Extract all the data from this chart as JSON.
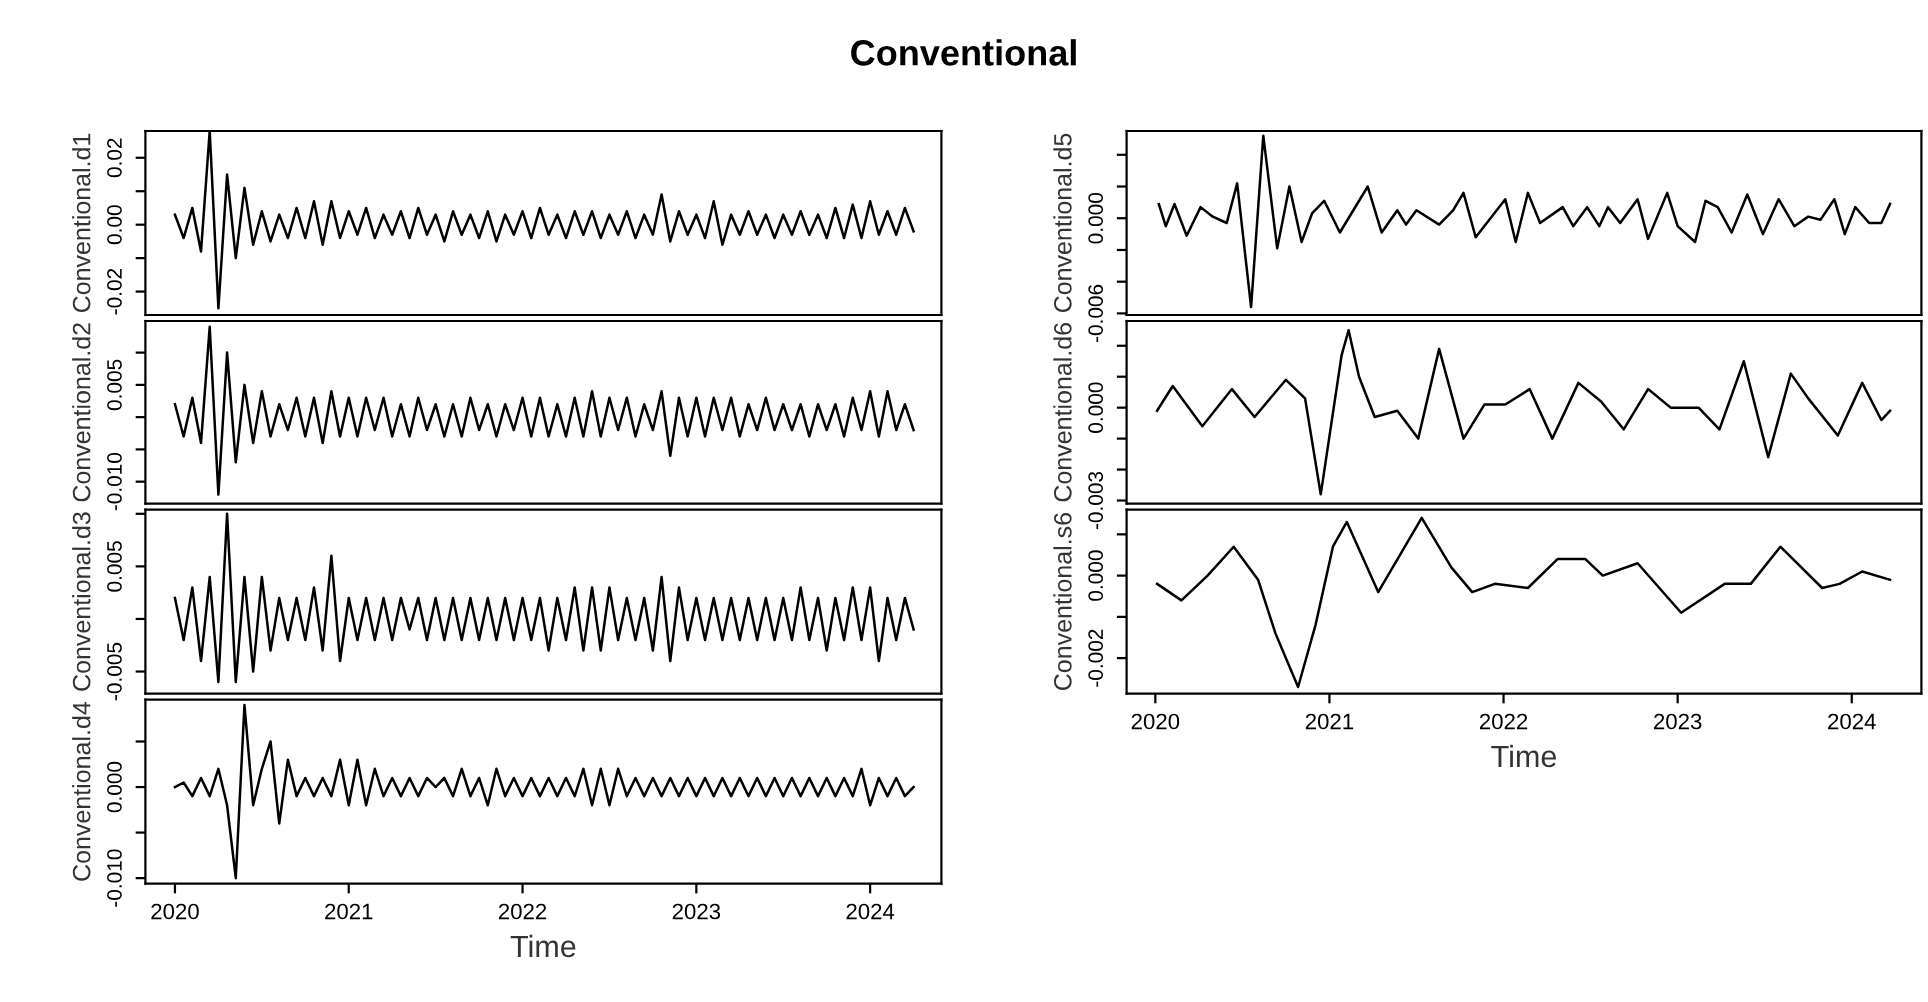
{
  "chart_data": [
    {
      "type": "line",
      "title": "Conventional",
      "ylabel": "Conventional.d1",
      "tick_labels": "y",
      "xlim": [
        2019.83,
        2024.41
      ],
      "ylim": [
        -0.027,
        0.028
      ],
      "yticks": [
        {
          "value": -0.02,
          "label": "-0.02"
        },
        {
          "value": -0.01,
          "label": null
        },
        {
          "value": 0,
          "label": "0.00"
        },
        {
          "value": 0.01,
          "label": null
        },
        {
          "value": 0.02,
          "label": "0.02"
        }
      ],
      "grid": false,
      "legend": false,
      "series": [
        {
          "color": "#000000",
          "x": [
            2020.0,
            2020.05,
            2020.1,
            2020.15,
            2020.2,
            2020.25,
            2020.3,
            2020.35,
            2020.4,
            2020.45,
            2020.5,
            2020.55,
            2020.6,
            2020.65,
            2020.7,
            2020.75,
            2020.8,
            2020.85,
            2020.9,
            2020.95,
            2021.0,
            2021.05,
            2021.1,
            2021.15,
            2021.2,
            2021.25,
            2021.3,
            2021.35,
            2021.4,
            2021.45,
            2021.5,
            2021.55,
            2021.6,
            2021.65,
            2021.7,
            2021.75,
            2021.8,
            2021.85,
            2021.9,
            2021.95,
            2022.0,
            2022.05,
            2022.1,
            2022.15,
            2022.2,
            2022.25,
            2022.3,
            2022.35,
            2022.4,
            2022.45,
            2022.5,
            2022.55,
            2022.6,
            2022.65,
            2022.7,
            2022.75,
            2022.8,
            2022.85,
            2022.9,
            2022.95,
            2023.0,
            2023.05,
            2023.1,
            2023.15,
            2023.2,
            2023.25,
            2023.3,
            2023.35,
            2023.4,
            2023.45,
            2023.5,
            2023.55,
            2023.6,
            2023.65,
            2023.7,
            2023.75,
            2023.8,
            2023.85,
            2023.9,
            2023.95,
            2024.0,
            2024.05,
            2024.1,
            2024.15,
            2024.2,
            2024.25
          ],
          "values": [
            0.003,
            -0.004,
            0.005,
            -0.008,
            0.028,
            -0.025,
            0.015,
            -0.01,
            0.011,
            -0.006,
            0.004,
            -0.005,
            0.003,
            -0.004,
            0.005,
            -0.004,
            0.007,
            -0.006,
            0.007,
            -0.004,
            0.004,
            -0.003,
            0.005,
            -0.004,
            0.003,
            -0.003,
            0.004,
            -0.004,
            0.005,
            -0.003,
            0.003,
            -0.005,
            0.004,
            -0.003,
            0.003,
            -0.004,
            0.004,
            -0.005,
            0.003,
            -0.003,
            0.004,
            -0.004,
            0.005,
            -0.003,
            0.003,
            -0.004,
            0.004,
            -0.003,
            0.004,
            -0.004,
            0.003,
            -0.003,
            0.004,
            -0.004,
            0.003,
            -0.003,
            0.009,
            -0.005,
            0.004,
            -0.003,
            0.003,
            -0.004,
            0.007,
            -0.006,
            0.003,
            -0.003,
            0.004,
            -0.003,
            0.003,
            -0.004,
            0.003,
            -0.003,
            0.004,
            -0.003,
            0.003,
            -0.004,
            0.005,
            -0.004,
            0.006,
            -0.004,
            0.007,
            -0.003,
            0.004,
            -0.003,
            0.005,
            -0.002
          ]
        }
      ]
    },
    {
      "type": "line",
      "ylabel": "Conventional.d2",
      "tick_labels": "y",
      "xlim": [
        2019.83,
        2024.41
      ],
      "ylim": [
        -0.0134,
        0.0149
      ],
      "yticks": [
        {
          "value": -0.01,
          "label": "-0.010"
        },
        {
          "value": -0.005,
          "label": null
        },
        {
          "value": 0,
          "label": null
        },
        {
          "value": 0.005,
          "label": "0.005"
        },
        {
          "value": 0.01,
          "label": null
        }
      ],
      "grid": false,
      "legend": false,
      "series": [
        {
          "color": "#000000",
          "x": [
            2020.0,
            2020.05,
            2020.1,
            2020.15,
            2020.2,
            2020.25,
            2020.3,
            2020.35,
            2020.4,
            2020.45,
            2020.5,
            2020.55,
            2020.6,
            2020.65,
            2020.7,
            2020.75,
            2020.8,
            2020.85,
            2020.9,
            2020.95,
            2021.0,
            2021.05,
            2021.1,
            2021.15,
            2021.2,
            2021.25,
            2021.3,
            2021.35,
            2021.4,
            2021.45,
            2021.5,
            2021.55,
            2021.6,
            2021.65,
            2021.7,
            2021.75,
            2021.8,
            2021.85,
            2021.9,
            2021.95,
            2022.0,
            2022.05,
            2022.1,
            2022.15,
            2022.2,
            2022.25,
            2022.3,
            2022.35,
            2022.4,
            2022.45,
            2022.5,
            2022.55,
            2022.6,
            2022.65,
            2022.7,
            2022.75,
            2022.8,
            2022.85,
            2022.9,
            2022.95,
            2023.0,
            2023.05,
            2023.1,
            2023.15,
            2023.2,
            2023.25,
            2023.3,
            2023.35,
            2023.4,
            2023.45,
            2023.5,
            2023.55,
            2023.6,
            2023.65,
            2023.7,
            2023.75,
            2023.8,
            2023.85,
            2023.9,
            2023.95,
            2024.0,
            2024.05,
            2024.1,
            2024.15,
            2024.2,
            2024.25
          ],
          "values": [
            0.002,
            -0.003,
            0.003,
            -0.004,
            0.014,
            -0.012,
            0.01,
            -0.007,
            0.005,
            -0.004,
            0.004,
            -0.003,
            0.002,
            -0.002,
            0.003,
            -0.003,
            0.003,
            -0.004,
            0.004,
            -0.003,
            0.003,
            -0.003,
            0.003,
            -0.002,
            0.003,
            -0.003,
            0.002,
            -0.003,
            0.003,
            -0.002,
            0.002,
            -0.003,
            0.002,
            -0.003,
            0.003,
            -0.002,
            0.002,
            -0.003,
            0.002,
            -0.002,
            0.003,
            -0.003,
            0.003,
            -0.003,
            0.002,
            -0.003,
            0.003,
            -0.003,
            0.004,
            -0.003,
            0.003,
            -0.002,
            0.003,
            -0.003,
            0.002,
            -0.002,
            0.004,
            -0.006,
            0.003,
            -0.003,
            0.003,
            -0.003,
            0.003,
            -0.002,
            0.003,
            -0.003,
            0.002,
            -0.002,
            0.003,
            -0.002,
            0.002,
            -0.002,
            0.002,
            -0.003,
            0.002,
            -0.002,
            0.002,
            -0.003,
            0.003,
            -0.002,
            0.004,
            -0.003,
            0.004,
            -0.002,
            0.002,
            -0.002
          ]
        }
      ]
    },
    {
      "type": "line",
      "ylabel": "Conventional.d3",
      "tick_labels": "y",
      "xlim": [
        2019.83,
        2024.41
      ],
      "ylim": [
        -0.0071,
        0.0104
      ],
      "yticks": [
        {
          "value": -0.005,
          "label": "-0.005"
        },
        {
          "value": 0,
          "label": null
        },
        {
          "value": 0.005,
          "label": "0.005"
        },
        {
          "value": 0.01,
          "label": null
        }
      ],
      "grid": false,
      "legend": false,
      "series": [
        {
          "color": "#000000",
          "x": [
            2020.0,
            2020.05,
            2020.1,
            2020.15,
            2020.2,
            2020.25,
            2020.3,
            2020.35,
            2020.4,
            2020.45,
            2020.5,
            2020.55,
            2020.6,
            2020.65,
            2020.7,
            2020.75,
            2020.8,
            2020.85,
            2020.9,
            2020.95,
            2021.0,
            2021.05,
            2021.1,
            2021.15,
            2021.2,
            2021.25,
            2021.3,
            2021.35,
            2021.4,
            2021.45,
            2021.5,
            2021.55,
            2021.6,
            2021.65,
            2021.7,
            2021.75,
            2021.8,
            2021.85,
            2021.9,
            2021.95,
            2022.0,
            2022.05,
            2022.1,
            2022.15,
            2022.2,
            2022.25,
            2022.3,
            2022.35,
            2022.4,
            2022.45,
            2022.5,
            2022.55,
            2022.6,
            2022.65,
            2022.7,
            2022.75,
            2022.8,
            2022.85,
            2022.9,
            2022.95,
            2023.0,
            2023.05,
            2023.1,
            2023.15,
            2023.2,
            2023.25,
            2023.3,
            2023.35,
            2023.4,
            2023.45,
            2023.5,
            2023.55,
            2023.6,
            2023.65,
            2023.7,
            2023.75,
            2023.8,
            2023.85,
            2023.9,
            2023.95,
            2024.0,
            2024.05,
            2024.1,
            2024.15,
            2024.2,
            2024.25
          ],
          "values": [
            0.002,
            -0.002,
            0.003,
            -0.004,
            0.004,
            -0.006,
            0.01,
            -0.006,
            0.004,
            -0.005,
            0.004,
            -0.003,
            0.002,
            -0.002,
            0.002,
            -0.002,
            0.003,
            -0.003,
            0.006,
            -0.004,
            0.002,
            -0.002,
            0.002,
            -0.002,
            0.002,
            -0.002,
            0.002,
            -0.001,
            0.002,
            -0.002,
            0.002,
            -0.002,
            0.002,
            -0.002,
            0.002,
            -0.002,
            0.002,
            -0.002,
            0.002,
            -0.002,
            0.002,
            -0.002,
            0.002,
            -0.003,
            0.002,
            -0.002,
            0.003,
            -0.003,
            0.003,
            -0.003,
            0.003,
            -0.002,
            0.002,
            -0.002,
            0.002,
            -0.003,
            0.004,
            -0.004,
            0.003,
            -0.002,
            0.002,
            -0.002,
            0.002,
            -0.002,
            0.002,
            -0.002,
            0.002,
            -0.002,
            0.002,
            -0.002,
            0.002,
            -0.002,
            0.003,
            -0.002,
            0.002,
            -0.003,
            0.002,
            -0.002,
            0.003,
            -0.002,
            0.003,
            -0.004,
            0.002,
            -0.002,
            0.002,
            -0.001
          ]
        }
      ]
    },
    {
      "type": "line",
      "ylabel": "Conventional.d4",
      "xlabel": "Time",
      "xlim": [
        2019.83,
        2024.41
      ],
      "ylim": [
        -0.0106,
        0.0096
      ],
      "xticks": [
        2020,
        2021,
        2022,
        2023,
        2024
      ],
      "yticks": [
        {
          "value": -0.01,
          "label": "-0.010"
        },
        {
          "value": -0.005,
          "label": null
        },
        {
          "value": 0,
          "label": "0.000"
        },
        {
          "value": 0.005,
          "label": null
        }
      ],
      "grid": false,
      "legend": false,
      "series": [
        {
          "color": "#000000",
          "x": [
            2020.0,
            2020.05,
            2020.1,
            2020.15,
            2020.2,
            2020.25,
            2020.3,
            2020.35,
            2020.4,
            2020.45,
            2020.5,
            2020.55,
            2020.6,
            2020.65,
            2020.7,
            2020.75,
            2020.8,
            2020.85,
            2020.9,
            2020.95,
            2021.0,
            2021.05,
            2021.1,
            2021.15,
            2021.2,
            2021.25,
            2021.3,
            2021.35,
            2021.4,
            2021.45,
            2021.5,
            2021.55,
            2021.6,
            2021.65,
            2021.7,
            2021.75,
            2021.8,
            2021.85,
            2021.9,
            2021.95,
            2022.0,
            2022.05,
            2022.1,
            2022.15,
            2022.2,
            2022.25,
            2022.3,
            2022.35,
            2022.4,
            2022.45,
            2022.5,
            2022.55,
            2022.6,
            2022.65,
            2022.7,
            2022.75,
            2022.8,
            2022.85,
            2022.9,
            2022.95,
            2023.0,
            2023.05,
            2023.1,
            2023.15,
            2023.2,
            2023.25,
            2023.3,
            2023.35,
            2023.4,
            2023.45,
            2023.5,
            2023.55,
            2023.6,
            2023.65,
            2023.7,
            2023.75,
            2023.8,
            2023.85,
            2023.9,
            2023.95,
            2024.0,
            2024.05,
            2024.1,
            2024.15,
            2024.2,
            2024.25
          ],
          "values": [
            0.0,
            0.0005,
            -0.001,
            0.001,
            -0.001,
            0.002,
            -0.002,
            -0.01,
            0.009,
            -0.002,
            0.002,
            0.005,
            -0.004,
            0.003,
            -0.001,
            0.001,
            -0.001,
            0.001,
            -0.001,
            0.003,
            -0.002,
            0.003,
            -0.002,
            0.002,
            -0.001,
            0.001,
            -0.001,
            0.001,
            -0.001,
            0.001,
            0.0,
            0.001,
            -0.001,
            0.002,
            -0.001,
            0.001,
            -0.002,
            0.002,
            -0.001,
            0.001,
            -0.001,
            0.001,
            -0.001,
            0.001,
            -0.001,
            0.001,
            -0.001,
            0.002,
            -0.002,
            0.002,
            -0.002,
            0.002,
            -0.001,
            0.001,
            -0.001,
            0.001,
            -0.001,
            0.001,
            -0.001,
            0.001,
            -0.001,
            0.001,
            -0.001,
            0.001,
            -0.001,
            0.001,
            -0.001,
            0.001,
            -0.001,
            0.001,
            -0.001,
            0.001,
            -0.001,
            0.001,
            -0.001,
            0.001,
            -0.001,
            0.001,
            -0.001,
            0.002,
            -0.002,
            0.001,
            -0.001,
            0.001,
            -0.001,
            0.0
          ]
        }
      ]
    },
    {
      "type": "line",
      "ylabel": "Conventional.d5",
      "tick_labels": "y",
      "xlim": [
        2019.835,
        2024.4
      ],
      "ylim": [
        -0.0061,
        0.0055
      ],
      "yticks": [
        {
          "value": -0.006,
          "label": "-0.006"
        },
        {
          "value": -0.004,
          "label": null
        },
        {
          "value": -0.002,
          "label": null
        },
        {
          "value": 0,
          "label": "0.000"
        },
        {
          "value": 0.002,
          "label": null
        },
        {
          "value": 0.004,
          "label": null
        }
      ],
      "grid": false,
      "legend": false,
      "series": [
        {
          "color": "#000000",
          "x": [
            2020.02,
            2020.06,
            2020.11,
            2020.18,
            2020.26,
            2020.33,
            2020.41,
            2020.47,
            2020.55,
            2020.62,
            2020.7,
            2020.77,
            2020.84,
            2020.9,
            2020.97,
            2021.06,
            2021.22,
            2021.3,
            2021.39,
            2021.44,
            2021.5,
            2021.63,
            2021.71,
            2021.77,
            2021.84,
            2022.01,
            2022.07,
            2022.14,
            2022.21,
            2022.34,
            2022.4,
            2022.48,
            2022.55,
            2022.6,
            2022.67,
            2022.77,
            2022.83,
            2022.94,
            2023.0,
            2023.1,
            2023.16,
            2023.23,
            2023.31,
            2023.4,
            2023.49,
            2023.58,
            2023.67,
            2023.75,
            2023.82,
            2023.9,
            2023.96,
            2024.02,
            2024.1,
            2024.17,
            2024.22
          ],
          "values": [
            0.0009,
            -0.0005,
            0.0009,
            -0.0011,
            0.0007,
            0.0001,
            -0.0003,
            0.0022,
            -0.0056,
            0.0052,
            -0.0019,
            0.002,
            -0.0015,
            0.0003,
            0.0011,
            -0.0009,
            0.002,
            -0.0009,
            0.0005,
            -0.0004,
            0.0005,
            -0.0004,
            0.0005,
            0.0016,
            -0.0012,
            0.0012,
            -0.0015,
            0.0016,
            -0.0003,
            0.0007,
            -0.0005,
            0.0007,
            -0.0005,
            0.0007,
            -0.0003,
            0.0012,
            -0.0013,
            0.0016,
            -0.0005,
            -0.0015,
            0.0011,
            0.0007,
            -0.0009,
            0.0015,
            -0.001,
            0.0012,
            -0.0005,
            0.0001,
            -0.0001,
            0.0012,
            -0.001,
            0.0007,
            -0.0003,
            -0.0003,
            0.0009
          ]
        }
      ]
    },
    {
      "type": "line",
      "ylabel": "Conventional.d6",
      "tick_labels": "y",
      "xlim": [
        2019.835,
        2024.4
      ],
      "ylim": [
        -0.0031,
        0.0028
      ],
      "yticks": [
        {
          "value": -0.003,
          "label": "-0.003"
        },
        {
          "value": -0.002,
          "label": null
        },
        {
          "value": -0.001,
          "label": null
        },
        {
          "value": 0,
          "label": "0.000"
        },
        {
          "value": 0.001,
          "label": null
        },
        {
          "value": 0.002,
          "label": null
        }
      ],
      "grid": false,
      "legend": false,
      "series": [
        {
          "color": "#000000",
          "x": [
            2020.01,
            2020.1,
            2020.27,
            2020.44,
            2020.57,
            2020.75,
            2020.86,
            2020.95,
            2021.07,
            2021.11,
            2021.17,
            2021.26,
            2021.39,
            2021.51,
            2021.63,
            2021.77,
            2021.89,
            2022.01,
            2022.15,
            2022.28,
            2022.43,
            2022.56,
            2022.69,
            2022.83,
            2022.96,
            2023.12,
            2023.24,
            2023.38,
            2023.52,
            2023.65,
            2023.75,
            2023.92,
            2024.06,
            2024.17,
            2024.22
          ],
          "values": [
            -0.0001,
            0.0007,
            -0.0006,
            0.0006,
            -0.0003,
            0.0009,
            0.0003,
            -0.0028,
            0.0017,
            0.0025,
            0.001,
            -0.0003,
            -0.0001,
            -0.001,
            0.0019,
            -0.001,
            0.0001,
            0.0001,
            0.0006,
            -0.001,
            0.0008,
            0.0002,
            -0.0007,
            0.0006,
            0.0,
            0.0,
            -0.0007,
            0.0015,
            -0.0016,
            0.0011,
            0.0003,
            -0.0009,
            0.0008,
            -0.0004,
            -0.0001
          ]
        }
      ]
    },
    {
      "type": "line",
      "ylabel": "Conventional.s6",
      "xlabel": "Time",
      "xlim": [
        2019.835,
        2024.4
      ],
      "ylim": [
        -0.00286,
        0.0016
      ],
      "xticks": [
        2020,
        2021,
        2022,
        2023,
        2024
      ],
      "yticks": [
        {
          "value": -0.002,
          "label": "-0.002"
        },
        {
          "value": -0.001,
          "label": null
        },
        {
          "value": 0,
          "label": "0.000"
        },
        {
          "value": 0.001,
          "label": null
        }
      ],
      "grid": false,
      "legend": false,
      "series": [
        {
          "color": "#000000",
          "x": [
            2020.01,
            2020.15,
            2020.3,
            2020.45,
            2020.59,
            2020.69,
            2020.82,
            2020.92,
            2021.02,
            2021.1,
            2021.28,
            2021.53,
            2021.7,
            2021.82,
            2021.95,
            2022.14,
            2022.31,
            2022.47,
            2022.57,
            2022.77,
            2023.02,
            2023.27,
            2023.42,
            2023.59,
            2023.83,
            2023.93,
            2024.06,
            2024.22
          ],
          "values": [
            -0.0002,
            -0.0006,
            0.0,
            0.0007,
            -0.0001,
            -0.0014,
            -0.0027,
            -0.0012,
            0.0007,
            0.0013,
            -0.0004,
            0.0014,
            0.0002,
            -0.0004,
            -0.0002,
            -0.0003,
            0.0004,
            0.0004,
            0.0,
            0.0003,
            -0.0009,
            -0.0002,
            -0.0002,
            0.0007,
            -0.0003,
            -0.0002,
            0.0001,
            -0.0001
          ]
        }
      ]
    }
  ]
}
